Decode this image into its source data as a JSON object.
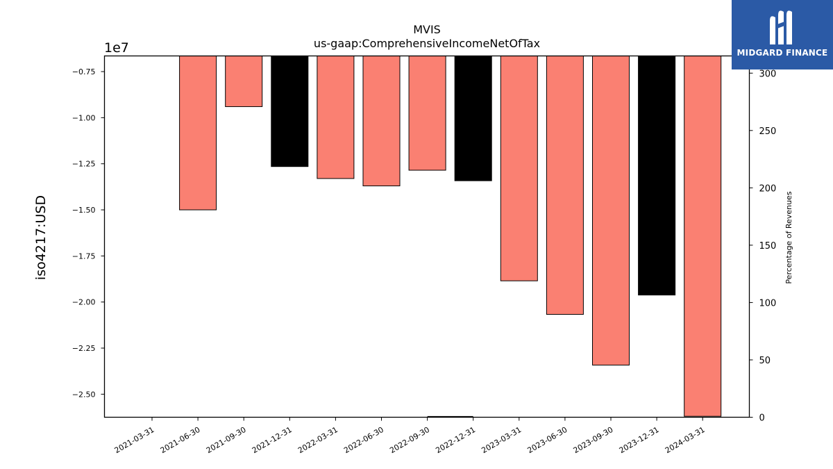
{
  "chart_data": {
    "type": "bar",
    "title": "MVIS",
    "subtitle": "us-gaap:ComprehensiveIncomeNetOfTax",
    "ylabel": "iso4217:USD",
    "y_offset_label": "1e7",
    "y2label": "Percentage of Revenues",
    "categories": [
      "2021-03-31",
      "2021-06-30",
      "2021-09-30",
      "2021-12-31",
      "2022-03-31",
      "2022-06-30",
      "2022-09-30",
      "2022-12-31",
      "2023-03-31",
      "2023-06-30",
      "2023-09-30",
      "2023-12-31",
      "2024-03-31"
    ],
    "values": [
      null,
      -15000000,
      -9400000,
      -12650000,
      -13300000,
      -13700000,
      -12850000,
      -13420000,
      -18850000,
      -20670000,
      -23420000,
      -19620000,
      -26200000
    ],
    "bar_colors": [
      "#fa8072",
      "#fa8072",
      "#fa8072",
      "#000000",
      "#fa8072",
      "#fa8072",
      "#fa8072",
      "#000000",
      "#fa8072",
      "#fa8072",
      "#fa8072",
      "#000000",
      "#fa8072"
    ],
    "ylim": [
      -26250000,
      -6650000
    ],
    "yticks": [
      -7500000,
      -10000000,
      -12500000,
      -15000000,
      -17500000,
      -20000000,
      -22500000,
      -25000000
    ],
    "ytick_labels": [
      "−0.75",
      "−1.00",
      "−1.25",
      "−1.50",
      "−1.75",
      "−2.00",
      "−2.25",
      "−2.50"
    ],
    "y2lim": [
      0,
      315
    ],
    "y2ticks": [
      0,
      50,
      100,
      150,
      200,
      250,
      300
    ],
    "y2tick_labels": [
      "0",
      "50",
      "100",
      "150",
      "200",
      "250",
      "300"
    ],
    "secondary_series": {
      "name": "Percentage of Revenues",
      "x_index": 7,
      "values": [
        0.5
      ]
    },
    "grid": false,
    "legend": "none"
  },
  "logo": {
    "text": "MIDGARD FINANCE",
    "color": "#2b5aa6"
  }
}
